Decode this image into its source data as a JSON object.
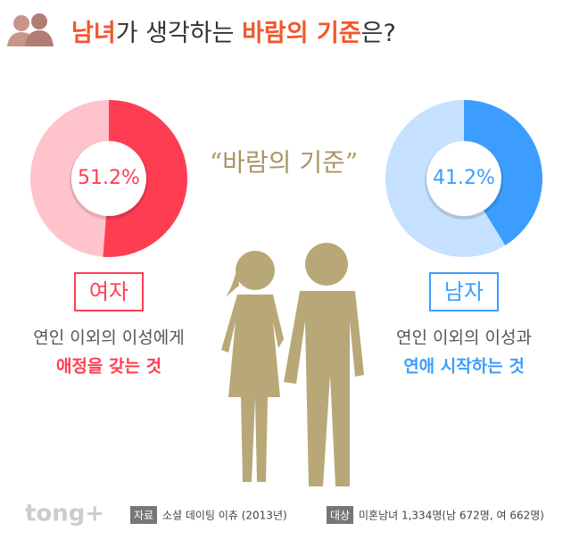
{
  "header": {
    "title_parts": [
      "남녀",
      "가 생각하는 ",
      "바람의 기준",
      "은?"
    ]
  },
  "quote": "“바람의 기준”",
  "chart_data": [
    {
      "type": "donut",
      "title": "여자",
      "values": [
        51.2,
        48.8
      ],
      "value_labels": [
        "51.2%",
        null
      ],
      "colors": [
        "#ff3d52",
        "#ffc4cb"
      ],
      "description": [
        "연인 이외의 이성에게",
        "애정을 갖는 것"
      ]
    },
    {
      "type": "donut",
      "title": "남자",
      "values": [
        41.2,
        58.8
      ],
      "value_labels": [
        "41.2%",
        null
      ],
      "colors": [
        "#3c9dff",
        "#c6e1ff"
      ],
      "description": [
        "연인 이외의 이성과",
        "연애 시작하는 것"
      ]
    }
  ],
  "footer": {
    "logo": "tong+",
    "source_label": "자료",
    "source": "소셜 데이팅 이츄 (2013년)",
    "target_label": "대상",
    "target": "미혼남녀 1,334명(남 672명, 여 662명)"
  }
}
